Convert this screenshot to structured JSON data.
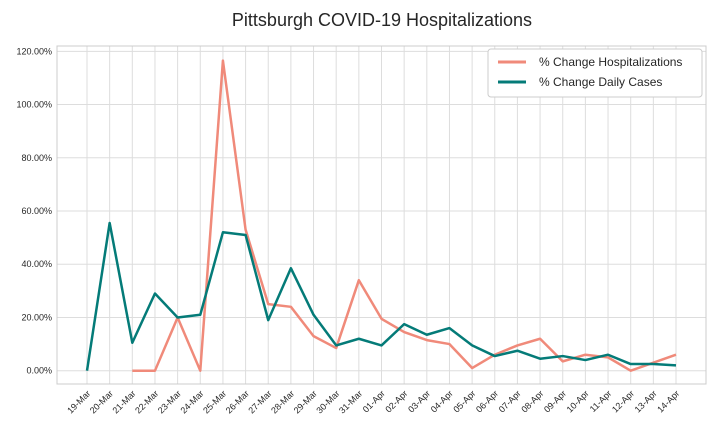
{
  "chart_data": {
    "type": "line",
    "title": "Pittsburgh COVID-19 Hospitalizations",
    "xlabel": "",
    "ylabel": "",
    "categories": [
      "19-Mar",
      "20-Mar",
      "21-Mar",
      "22-Mar",
      "23-Mar",
      "24-Mar",
      "25-Mar",
      "26-Mar",
      "27-Mar",
      "28-Mar",
      "29-Mar",
      "30-Mar",
      "31-Mar",
      "01-Apr",
      "02-Apr",
      "03-Apr",
      "04-Apr",
      "05-Apr",
      "06-Apr",
      "07-Apr",
      "08-Apr",
      "09-Apr",
      "10-Apr",
      "11-Apr",
      "12-Apr",
      "13-Apr",
      "14-Apr"
    ],
    "y_ticks": [
      "0.00%",
      "20.00%",
      "40.00%",
      "60.00%",
      "80.00%",
      "100.00%",
      "120.00%"
    ],
    "ylim": [
      -5,
      122
    ],
    "grid": true,
    "legend_position": "top-right",
    "series": [
      {
        "name": "% Change Hospitalizations",
        "color": "#f08a7a",
        "values": [
          null,
          null,
          0,
          0,
          20,
          0,
          116.5,
          53,
          25,
          24,
          13,
          8.5,
          34,
          19.5,
          14.5,
          11.5,
          10,
          1,
          6,
          9.5,
          12,
          3.5,
          6,
          5,
          0,
          3,
          6
        ]
      },
      {
        "name": "% Change Daily Cases",
        "color": "#047b78",
        "values": [
          0,
          55.5,
          10.5,
          29,
          20,
          21,
          52,
          51,
          19,
          38.5,
          21,
          9.5,
          12,
          9.5,
          17.5,
          13.5,
          16,
          9.5,
          5.5,
          7.5,
          4.5,
          5.5,
          4,
          6,
          2.5,
          2.5,
          2
        ]
      }
    ]
  }
}
